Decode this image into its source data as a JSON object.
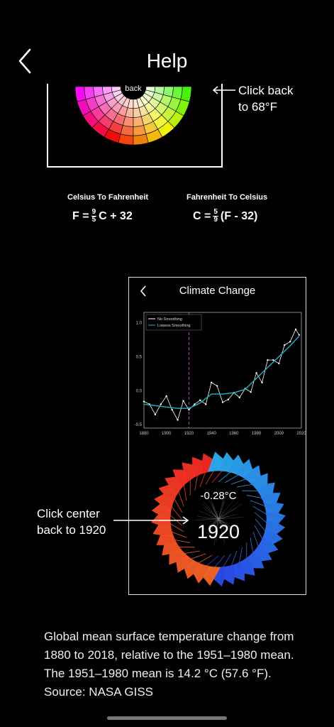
{
  "header": {
    "title": "Help",
    "back_icon": "chevron-left-icon"
  },
  "wheel": {
    "back_label": "back",
    "callout_lines": [
      "Click back",
      "to 68°F"
    ]
  },
  "formulas": {
    "c2f_label": "Celsius To Fahrenheit",
    "f2c_label": "Fahrenheit To Celsius",
    "c2f": {
      "lhs": "F =",
      "num": "9",
      "den": "5",
      "rhs": "C + 32"
    },
    "f2c": {
      "lhs": "C =",
      "num": "5",
      "den": "9",
      "rhs": "(F - 32)"
    }
  },
  "phone": {
    "title": "Climate Change",
    "back_icon": "chevron-left-icon",
    "ring_temp": "-0.28°C",
    "ring_year": "1920",
    "callout_lines": [
      "Click center",
      "back to 1920"
    ]
  },
  "chart_data": {
    "type": "line",
    "x_ticks": [
      1880,
      1900,
      1920,
      1940,
      1960,
      1980,
      2000,
      2020
    ],
    "y_ticks": [
      1.0,
      0.5,
      0.0,
      -0.5
    ],
    "xlim": [
      1880,
      2020
    ],
    "ylim": [
      -0.55,
      1.15
    ],
    "marker_year": 1920,
    "legend": [
      "No Smoothing",
      "Lowess Smoothing"
    ],
    "legend_position": "top-left",
    "series": [
      {
        "name": "No Smoothing",
        "color": "#ffffff",
        "x": [
          1880,
          1885,
          1890,
          1895,
          1900,
          1905,
          1910,
          1915,
          1920,
          1925,
          1930,
          1935,
          1940,
          1945,
          1950,
          1955,
          1960,
          1965,
          1970,
          1975,
          1980,
          1985,
          1990,
          1995,
          2000,
          2005,
          2010,
          2015,
          2018
        ],
        "values": [
          -0.16,
          -0.2,
          -0.35,
          -0.2,
          -0.08,
          -0.28,
          -0.43,
          -0.15,
          -0.28,
          -0.2,
          -0.14,
          -0.2,
          0.12,
          0.07,
          -0.17,
          -0.13,
          -0.03,
          -0.1,
          0.03,
          -0.02,
          0.26,
          0.12,
          0.45,
          0.45,
          0.4,
          0.67,
          0.72,
          0.9,
          0.82
        ]
      },
      {
        "name": "Lowess Smoothing",
        "color": "#1fb5c8",
        "x": [
          1880,
          1890,
          1900,
          1910,
          1920,
          1930,
          1940,
          1950,
          1960,
          1970,
          1980,
          1990,
          2000,
          2010,
          2018
        ],
        "values": [
          -0.2,
          -0.22,
          -0.24,
          -0.26,
          -0.26,
          -0.18,
          -0.05,
          -0.05,
          -0.03,
          0.02,
          0.18,
          0.34,
          0.5,
          0.66,
          0.8
        ]
      }
    ]
  },
  "caption": [
    "Global mean surface temperature change from",
    "1880 to 2018, relative to the 1951–1980 mean.",
    "The 1951–1980 mean is 14.2 °C (57.6 °F).",
    "Source: NASA GISS"
  ]
}
